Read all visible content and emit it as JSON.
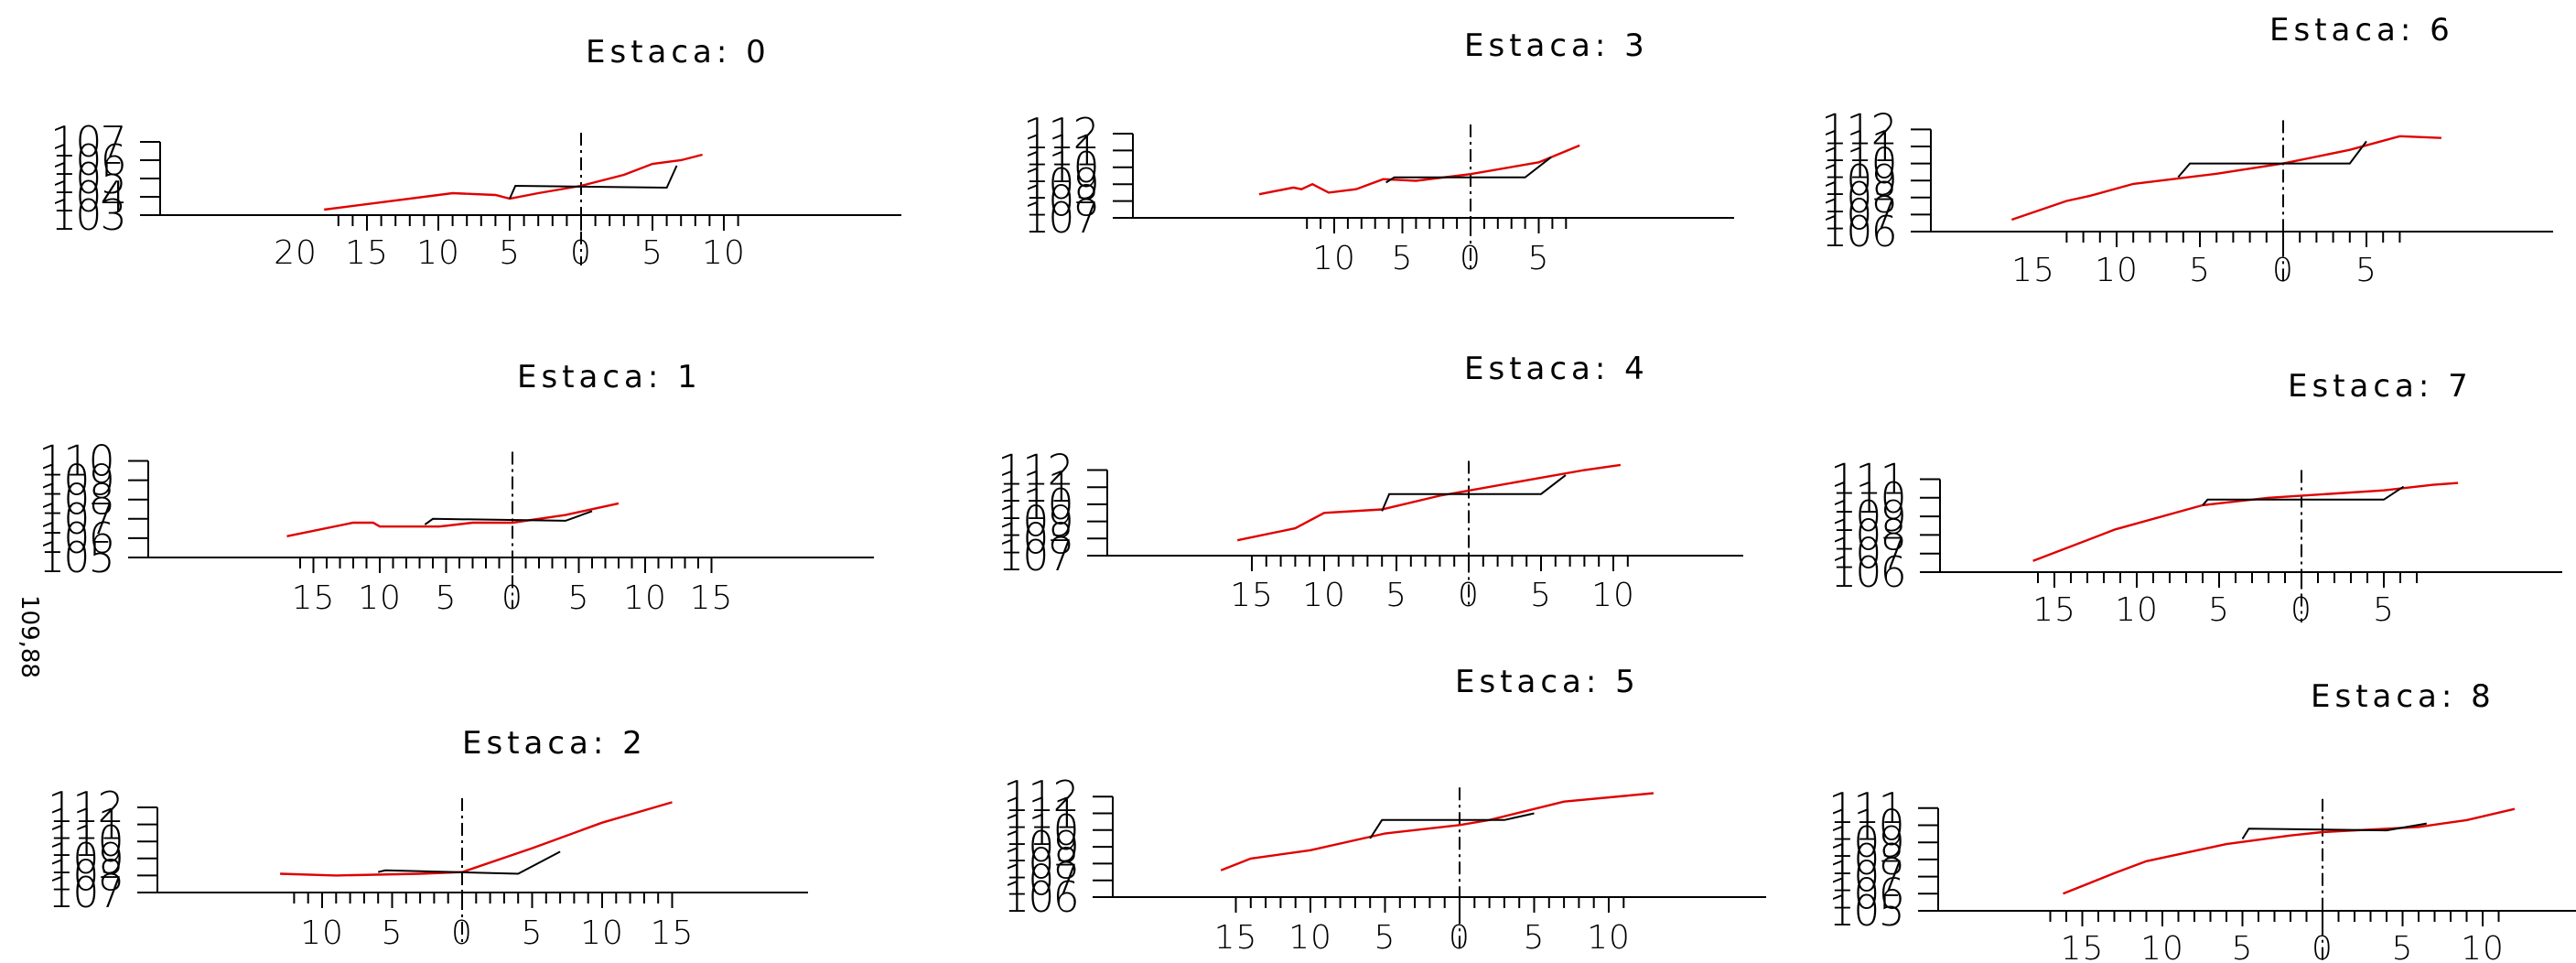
{
  "side_label": "109,88",
  "colors": {
    "terrain": "#e00000",
    "section": "#000000",
    "background": "#ffffff"
  },
  "chart_data": [
    {
      "type": "line",
      "title": "Estaca: 0",
      "y_labels": [
        "107",
        "106",
        "105",
        "104",
        "103"
      ],
      "x_labels": [
        "20",
        "15",
        "10",
        "5",
        "0",
        "5",
        "10"
      ],
      "terrain": [
        [
          -18,
          103.3
        ],
        [
          -9,
          104.2
        ],
        [
          -6,
          104.1
        ],
        [
          -5,
          103.9
        ],
        [
          -3,
          104.2
        ],
        [
          0,
          104.6
        ],
        [
          3,
          105.2
        ],
        [
          5,
          105.8
        ],
        [
          7,
          106
        ],
        [
          8.5,
          106.3
        ]
      ],
      "section": [
        [
          -5,
          103.9
        ],
        [
          -4.6,
          104.6
        ],
        [
          6,
          104.5
        ],
        [
          6.7,
          105.7
        ]
      ]
    },
    {
      "type": "line",
      "title": "Estaca: 3",
      "y_labels": [
        "112",
        "111",
        "110",
        "109",
        "108",
        "107"
      ],
      "x_labels": [
        "10",
        "5",
        "0",
        "5"
      ],
      "terrain": [
        [
          -15.5,
          108.4
        ],
        [
          -13,
          108.8
        ],
        [
          -12.4,
          108.7
        ],
        [
          -11.6,
          109
        ],
        [
          -10.4,
          108.5
        ],
        [
          -8.4,
          108.7
        ],
        [
          -6.4,
          109.3
        ],
        [
          -4,
          109.2
        ],
        [
          0,
          109.6
        ],
        [
          5,
          110.3
        ],
        [
          8,
          111.3
        ]
      ],
      "section": [
        [
          -6.2,
          109.1
        ],
        [
          -5.6,
          109.4
        ],
        [
          4,
          109.4
        ],
        [
          5.9,
          110.6
        ]
      ]
    },
    {
      "type": "line",
      "title": "Estaca: 6",
      "y_labels": [
        "112",
        "111",
        "110",
        "109",
        "108",
        "107",
        "106"
      ],
      "x_labels": [
        "15",
        "10",
        "5",
        "0",
        "5"
      ],
      "terrain": [
        [
          -16.3,
          106.7
        ],
        [
          -13,
          107.8
        ],
        [
          -11.6,
          108.1
        ],
        [
          -9,
          108.8
        ],
        [
          -4,
          109.4
        ],
        [
          0,
          110
        ],
        [
          4,
          110.8
        ],
        [
          7,
          111.6
        ],
        [
          9.5,
          111.5
        ]
      ],
      "section": [
        [
          -6.3,
          109.2
        ],
        [
          -5.6,
          110
        ],
        [
          4,
          110
        ],
        [
          5,
          111.3
        ]
      ]
    },
    {
      "type": "line",
      "title": "Estaca: 1",
      "y_labels": [
        "110",
        "109",
        "108",
        "107",
        "106",
        "105"
      ],
      "x_labels": [
        "15",
        "10",
        "5",
        "0",
        "5",
        "10",
        "15"
      ],
      "terrain": [
        [
          -17,
          106.1
        ],
        [
          -12,
          106.8
        ],
        [
          -10.5,
          106.8
        ],
        [
          -10,
          106.6
        ],
        [
          -5.5,
          106.6
        ],
        [
          -3,
          106.8
        ],
        [
          0,
          106.8
        ],
        [
          4,
          107.2
        ],
        [
          8,
          107.8
        ]
      ],
      "section": [
        [
          -6.6,
          106.7
        ],
        [
          -6,
          107
        ],
        [
          4,
          106.9
        ],
        [
          6,
          107.4
        ]
      ]
    },
    {
      "type": "line",
      "title": "Estaca: 4",
      "y_labels": [
        "112",
        "111",
        "110",
        "109",
        "108",
        "107"
      ],
      "x_labels": [
        "15",
        "10",
        "5",
        "0",
        "5",
        "10"
      ],
      "terrain": [
        [
          -16,
          107.9
        ],
        [
          -12,
          108.6
        ],
        [
          -10,
          109.5
        ],
        [
          -6,
          109.7
        ],
        [
          -2,
          110.5
        ],
        [
          0,
          110.8
        ],
        [
          4,
          111.4
        ],
        [
          8,
          112
        ],
        [
          10.5,
          112.3
        ]
      ],
      "section": [
        [
          -6,
          109.6
        ],
        [
          -5.5,
          110.6
        ],
        [
          5,
          110.6
        ],
        [
          6.7,
          111.7
        ]
      ]
    },
    {
      "type": "line",
      "title": "Estaca: 7",
      "y_labels": [
        "111",
        "110",
        "109",
        "108",
        "107",
        "106"
      ],
      "x_labels": [
        "15",
        "10",
        "5",
        "0",
        "5"
      ],
      "terrain": [
        [
          -16.3,
          106.6
        ],
        [
          -11.3,
          108.3
        ],
        [
          -6,
          109.6
        ],
        [
          -2,
          110
        ],
        [
          5,
          110.4
        ],
        [
          8,
          110.7
        ],
        [
          9.5,
          110.8
        ]
      ],
      "section": [
        [
          -6,
          109.6
        ],
        [
          -5.7,
          109.9
        ],
        [
          5,
          109.9
        ],
        [
          6.2,
          110.6
        ]
      ]
    },
    {
      "type": "line",
      "title": "Estaca: 2",
      "y_labels": [
        "112",
        "111",
        "110",
        "109",
        "108",
        "107"
      ],
      "x_labels": [
        "10",
        "5",
        "0",
        "5",
        "10",
        "15"
      ],
      "terrain": [
        [
          -13,
          108.1
        ],
        [
          -9,
          108
        ],
        [
          -3,
          108.1
        ],
        [
          0,
          108.2
        ],
        [
          5,
          109.6
        ],
        [
          10,
          111.1
        ],
        [
          15,
          112.3
        ]
      ],
      "section": [
        [
          -6,
          108.2
        ],
        [
          -5.5,
          108.3
        ],
        [
          4,
          108.1
        ],
        [
          7,
          109.4
        ]
      ]
    },
    {
      "type": "line",
      "title": "Estaca: 5",
      "y_labels": [
        "112",
        "111",
        "110",
        "109",
        "108",
        "107",
        "106"
      ],
      "x_labels": [
        "15",
        "10",
        "5",
        "0",
        "5",
        "10"
      ],
      "terrain": [
        [
          -16,
          107.6
        ],
        [
          -14,
          108.3
        ],
        [
          -10,
          108.8
        ],
        [
          -5,
          109.8
        ],
        [
          0,
          110.3
        ],
        [
          2,
          110.6
        ],
        [
          7,
          111.7
        ],
        [
          13,
          112.2
        ]
      ],
      "section": [
        [
          -6,
          109.5
        ],
        [
          -5.2,
          110.6
        ],
        [
          3,
          110.6
        ],
        [
          5,
          111
        ]
      ]
    },
    {
      "type": "line",
      "title": "Estaca: 8",
      "y_labels": [
        "111",
        "110",
        "109",
        "108",
        "107",
        "106",
        "105"
      ],
      "x_labels": [
        "15",
        "10",
        "5",
        "0",
        "5",
        "10"
      ],
      "terrain": [
        [
          -16.2,
          106
        ],
        [
          -13,
          107.2
        ],
        [
          -11,
          107.9
        ],
        [
          -6,
          108.9
        ],
        [
          -2,
          109.4
        ],
        [
          0,
          109.6
        ],
        [
          6,
          109.9
        ],
        [
          9,
          110.3
        ],
        [
          12,
          110.95
        ]
      ],
      "section": [
        [
          -5,
          109.2
        ],
        [
          -4.6,
          109.8
        ],
        [
          4,
          109.7
        ],
        [
          6.5,
          110.1
        ]
      ]
    }
  ]
}
